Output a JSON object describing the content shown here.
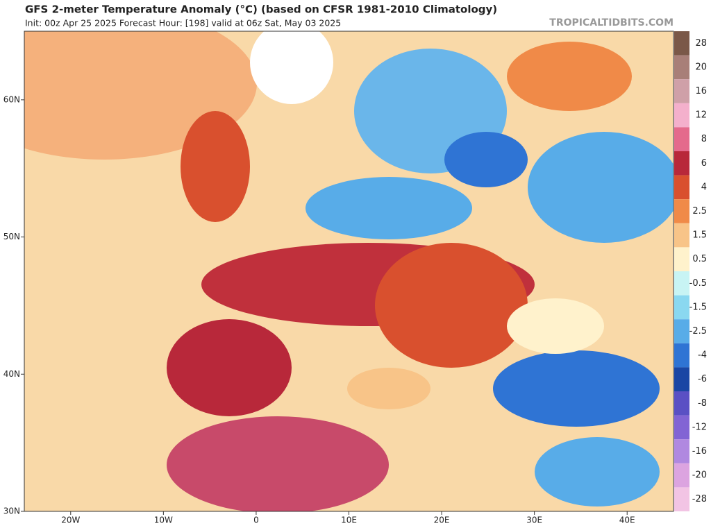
{
  "chart_data": {
    "type": "map",
    "title": "GFS 2-meter Temperature Anomaly (°C) (based on CFSR 1981-2010 Climatology)",
    "subtitle": "Init: 00z Apr 25 2025   Forecast Hour: [198]   valid at 06z Sat, May 03 2025",
    "source": "TROPICALTIDBITS.COM",
    "xlim": [
      -25,
      45
    ],
    "ylim": [
      30,
      65
    ],
    "xticks": [
      {
        "value": -20,
        "label": "20W"
      },
      {
        "value": -10,
        "label": "10W"
      },
      0,
      {
        "value": 10,
        "label": "10E"
      },
      {
        "value": 20,
        "label": "20E"
      },
      {
        "value": 30,
        "label": "30E"
      },
      {
        "value": 40,
        "label": "40E"
      }
    ],
    "yticks": [
      {
        "value": 30,
        "label": "30N"
      },
      {
        "value": 40,
        "label": "40N"
      },
      {
        "value": 50,
        "label": "50N"
      },
      {
        "value": 60,
        "label": "60N"
      }
    ],
    "colorbar": {
      "levels": [
        28,
        20,
        16,
        12,
        8,
        6,
        4,
        2.5,
        1.5,
        0.5,
        -0.5,
        -1.5,
        -2.5,
        -4,
        -6,
        -8,
        -12,
        -16,
        -20,
        -28
      ],
      "colors": [
        "#7a5848",
        "#a87f78",
        "#cfa0a8",
        "#f4b0cc",
        "#e46a8c",
        "#b8283a",
        "#d9502e",
        "#f08a48",
        "#f8c488",
        "#fff2cc",
        "#c8f4f4",
        "#8ad8f0",
        "#58ace8",
        "#2f74d4",
        "#1a46a4",
        "#5a50c4",
        "#8264d4",
        "#b088e0",
        "#dca4e0",
        "#f2c4e4"
      ]
    }
  }
}
